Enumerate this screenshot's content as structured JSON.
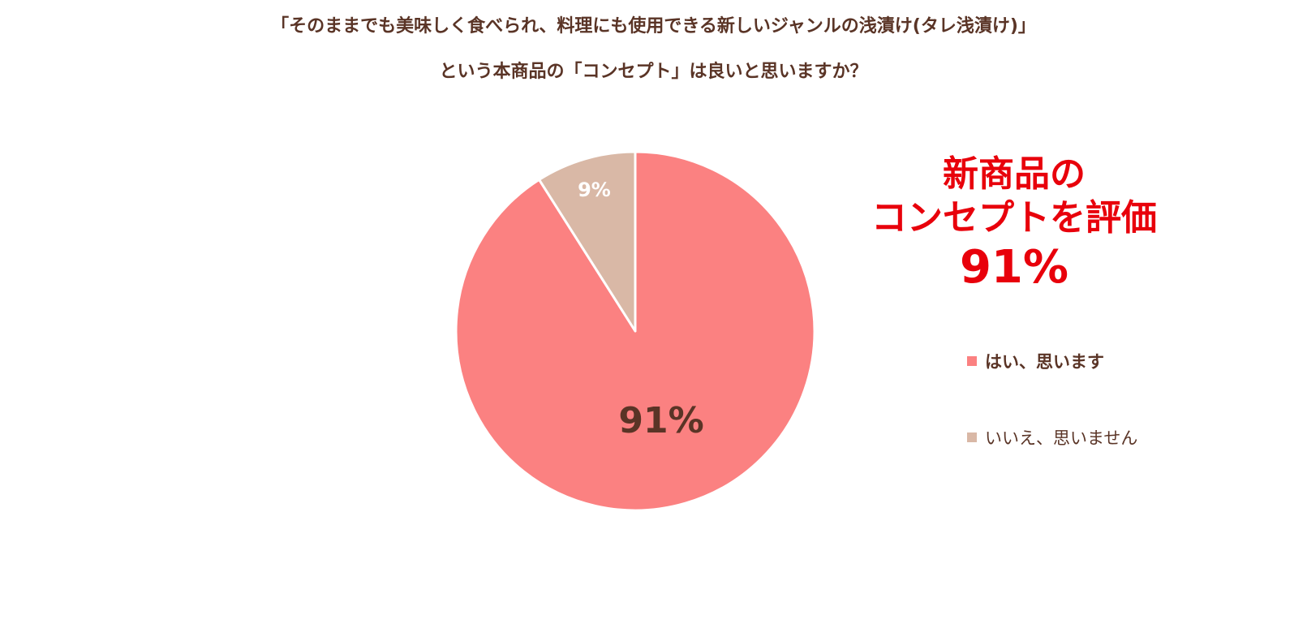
{
  "title": {
    "line1": "「そのままでも美味しく食べられ、料理にも使用できる新しいジャンルの浅漬け(タレ浅漬け)」",
    "line2": "という本商品の「コンセプト」は良いと思いますか？"
  },
  "callout": {
    "line1": "新商品の",
    "line2": "コンセプトを評価",
    "line3": "91%"
  },
  "colors": {
    "yes": "#fb8181",
    "no": "#d9b8a6",
    "text_brown": "#5a3426",
    "callout_red": "#e8000b",
    "slice_border": "#ffffff"
  },
  "chart_data": {
    "type": "pie",
    "title": "「そのままでも美味しく食べられ、料理にも使用できる新しいジャンルの浅漬け(タレ浅漬け)」という本商品の「コンセプト」は良いと思いますか？",
    "slices": [
      {
        "label": "はい、思います",
        "value": 91,
        "data_label": "91%",
        "color": "#fb8181"
      },
      {
        "label": "いいえ、思いません",
        "value": 9,
        "data_label": "9%",
        "color": "#d9b8a6"
      }
    ],
    "legend_position": "right"
  }
}
